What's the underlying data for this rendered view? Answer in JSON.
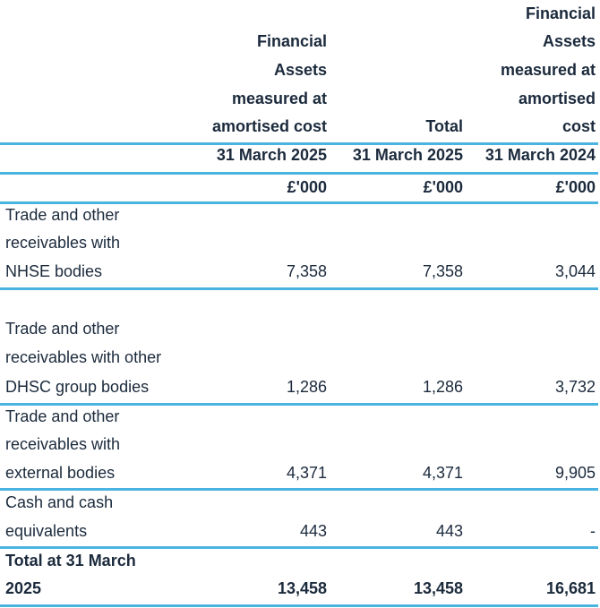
{
  "header": {
    "col1": [
      "Financial",
      "Assets",
      "measured at",
      "amortised cost"
    ],
    "col2": [
      "Total"
    ],
    "col3": [
      "Financial",
      "Assets",
      "measured at",
      "amortised",
      "cost"
    ],
    "dates": [
      "31 March 2025",
      "31 March 2025",
      "31 March 2024"
    ],
    "units": [
      "£'000",
      "£'000",
      "£'000"
    ]
  },
  "rows": [
    {
      "label": [
        "Trade and other",
        "receivables with",
        "NHSE bodies"
      ],
      "values": [
        "7,358",
        "7,358",
        "3,044"
      ]
    },
    {
      "label": [
        "Trade and other",
        "receivables with other",
        "DHSC group bodies"
      ],
      "values": [
        "1,286",
        "1,286",
        "3,732"
      ]
    },
    {
      "label": [
        "Trade and other",
        "receivables with",
        "external bodies"
      ],
      "values": [
        "4,371",
        "4,371",
        "9,905"
      ]
    },
    {
      "label": [
        "Cash and cash",
        "equivalents"
      ],
      "values": [
        "443",
        "443",
        "-"
      ]
    }
  ],
  "total": {
    "label": [
      "Total at 31 March",
      "2025"
    ],
    "values": [
      "13,458",
      "13,458",
      "16,681"
    ]
  }
}
